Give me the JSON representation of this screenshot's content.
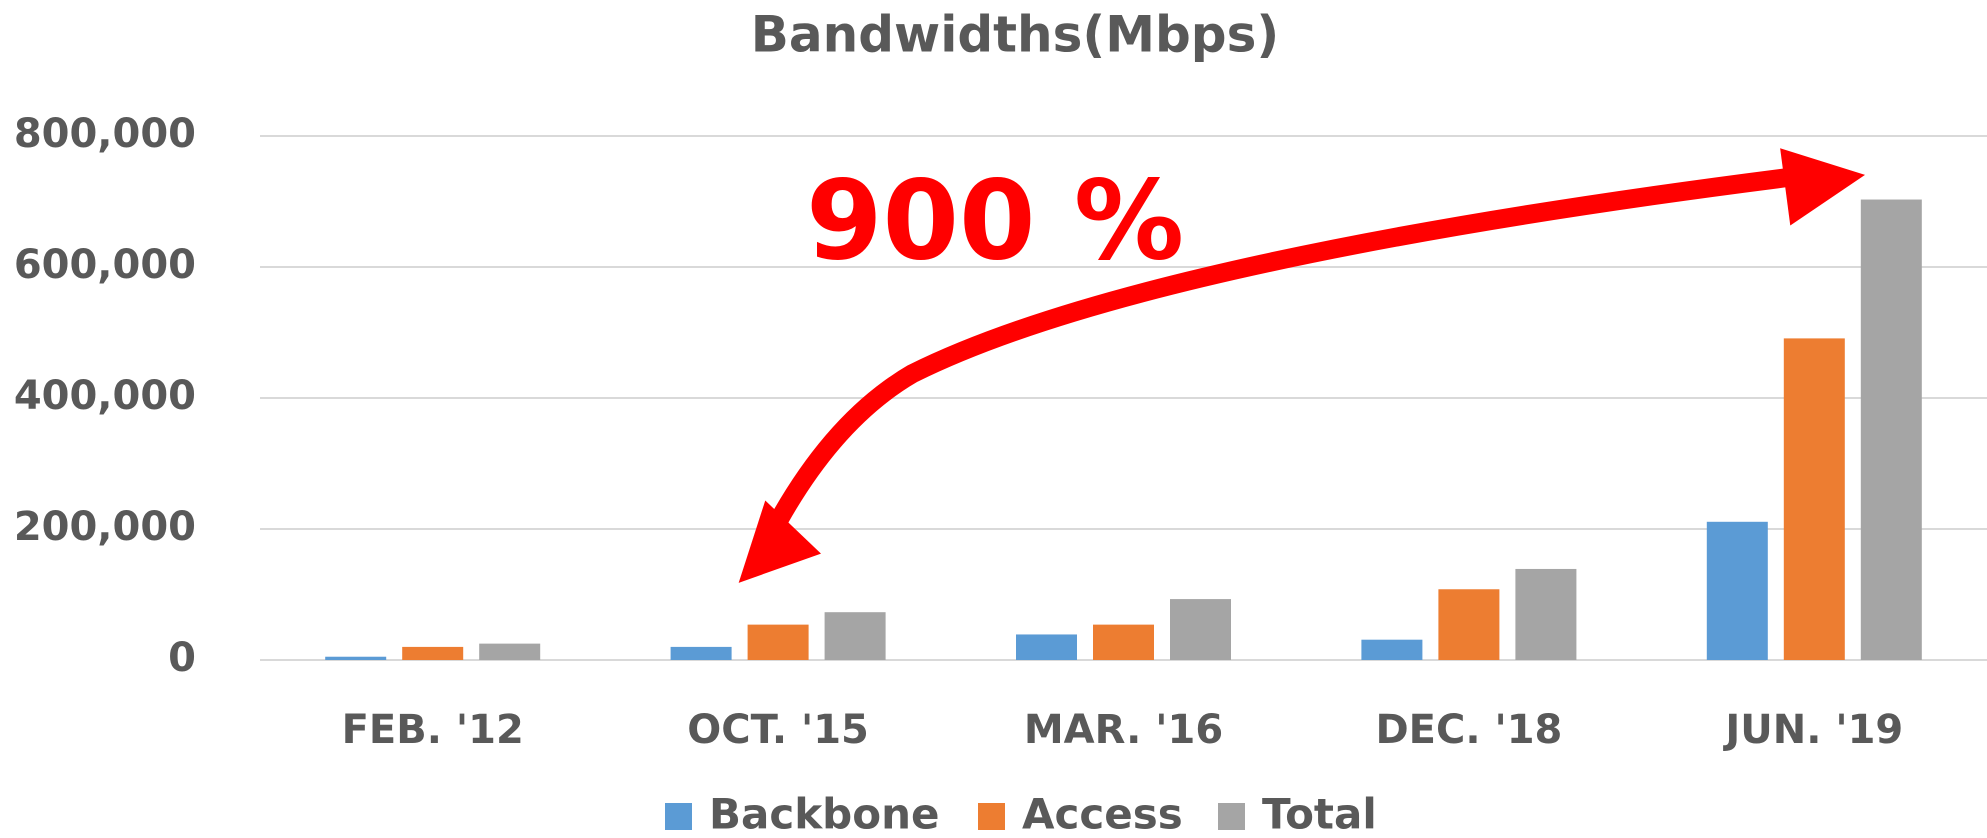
{
  "chart_data": {
    "type": "bar",
    "title": "Bandwidths(Mbps)",
    "categories": [
      "FEB. '12",
      "OCT. '15",
      "MAR. '16",
      "DEC. '18",
      "JUN. '19"
    ],
    "series": [
      {
        "name": "Backbone",
        "color": "#5b9bd5",
        "values": [
          5000,
          20000,
          39000,
          31000,
          211000
        ]
      },
      {
        "name": "Access",
        "color": "#ed7d31",
        "values": [
          20000,
          54000,
          54000,
          108000,
          491000
        ]
      },
      {
        "name": "Total",
        "color": "#a5a5a5",
        "values": [
          25000,
          73000,
          93000,
          139000,
          703000
        ]
      }
    ],
    "ylim": [
      0,
      800000
    ],
    "yticks": [
      0,
      {
        "value": 200000,
        "label": "200,000"
      },
      {
        "value": 400000,
        "label": "400,000"
      },
      {
        "value": 600000,
        "label": "600,000"
      },
      {
        "value": 800000,
        "label": "800,000"
      }
    ],
    "grid": true,
    "legend": "bottom",
    "annotation": "900 %"
  }
}
